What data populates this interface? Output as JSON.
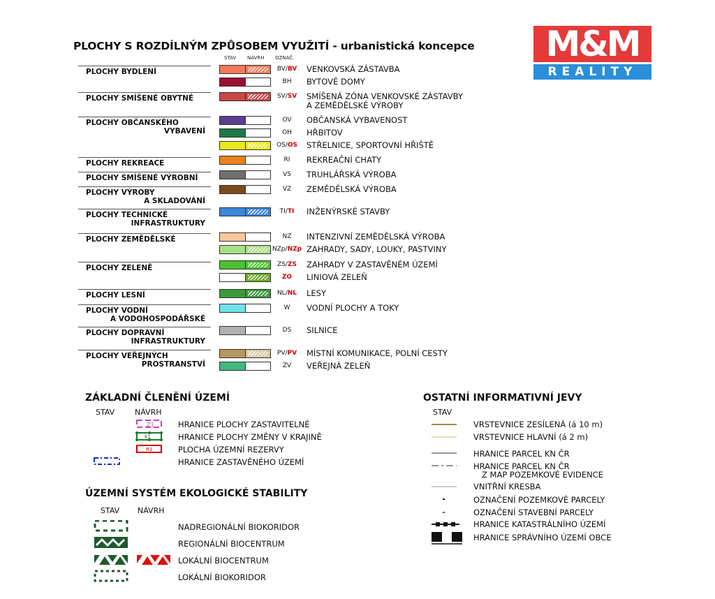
{
  "title": {
    "main": "PLOCHY S ROZDÍLNÝM ZPŮSOBEM VYUŽITÍ",
    "sub": " - urbanistická koncepce"
  },
  "columns": {
    "stav": "STAV",
    "navrh": "NÁVRH",
    "oznac": "OZNAČ."
  },
  "logo": {
    "top": "M&M",
    "bottom": "REALITY",
    "red": "#e53a3a",
    "blue": "#2a8fd8"
  },
  "groups": [
    {
      "lines": [
        "PLOCHY BYDLENÍ"
      ],
      "items": [
        {
          "stav": "#f47a5a",
          "navrh": "#f47a5a",
          "code": "BV",
          "code_red": "BV",
          "desc": [
            "VENKOVSKÁ ZÁSTAVBA"
          ]
        },
        {
          "stav": "#9b1030",
          "navrh": null,
          "code": "BH",
          "code_red": null,
          "desc": [
            "BYTOVÉ DOMY"
          ]
        }
      ]
    },
    {
      "lines": [
        "PLOCHY SMÍŠENÉ OBYTNÉ"
      ],
      "items": [
        {
          "stav": "#c84848",
          "navrh": "#c84848",
          "code": "SV",
          "code_red": "SV",
          "desc": [
            "SMÍŠENÁ ZÓNA VENKOVSKÉ ZÁSTAVBY",
            "A ZEMĚDĚLSKÉ VÝROBY"
          ]
        }
      ]
    },
    {
      "lines": [
        "PLOCHY OBČANSKÉHO",
        "VYBAVENÍ"
      ],
      "items": [
        {
          "stav": "#5b3f8f",
          "navrh": null,
          "code": "OV",
          "code_red": null,
          "desc": [
            "OBČANSKÁ VYBAVENOST"
          ]
        },
        {
          "stav": "#1e7a4a",
          "navrh": null,
          "code": "OH",
          "code_red": null,
          "desc": [
            "HŘBITOV"
          ]
        },
        {
          "stav": "#e8e820",
          "navrh": "#e8e820",
          "code": "OS",
          "code_red": "OS",
          "desc": [
            "STŘELNICE, SPORTOVNÍ HŘIŠTĚ"
          ]
        }
      ]
    },
    {
      "lines": [
        "PLOCHY REKREACE"
      ],
      "items": [
        {
          "stav": "#e8801e",
          "navrh": null,
          "code": "RI",
          "code_red": null,
          "desc": [
            "REKREAČNÍ CHATY"
          ]
        }
      ]
    },
    {
      "lines": [
        "PLOCHY SMÍŠENÉ VÝROBNÍ"
      ],
      "items": [
        {
          "stav": "#6e6e6e",
          "navrh": null,
          "code": "VS",
          "code_red": null,
          "desc": [
            "TRUHLÁŘSKÁ VÝROBA"
          ]
        }
      ]
    },
    {
      "lines": [
        "PLOCHY VÝROBY",
        "A SKLADOVÁNÍ"
      ],
      "items": [
        {
          "stav": "#7a4a1a",
          "navrh": null,
          "code": "VZ",
          "code_red": null,
          "desc": [
            "ZEMĚDĚLSKÁ VÝROBA"
          ]
        }
      ]
    },
    {
      "lines": [
        "PLOCHY TECHNICKÉ",
        "INFRASTRUKTURY"
      ],
      "items": [
        {
          "stav": "#3a86d8",
          "navrh": "#3a86d8",
          "code": "TI",
          "code_red": "TI",
          "desc": [
            "INŽENÝRSKÉ STAVBY"
          ]
        }
      ]
    },
    {
      "lines": [
        "PLOCHY ZEMĚDĚLSKÉ"
      ],
      "items": [
        {
          "stav": "#fcc89a",
          "navrh": null,
          "code": "NZ",
          "code_red": null,
          "desc": [
            "INTENZIVNÍ ZEMĚDĚLSKÁ VÝROBA"
          ]
        },
        {
          "stav": "#a8e088",
          "navrh": "#a8e088",
          "code": "NZp",
          "code_red": "NZp",
          "desc": [
            "ZAHRADY, SADY, LOUKY, PASTVINY"
          ]
        }
      ]
    },
    {
      "lines": [
        "PLOCHY ZELENĚ"
      ],
      "items": [
        {
          "stav": "#4cc030",
          "navrh": "#4cc030",
          "code": "ZS",
          "code_red": "ZS",
          "desc": [
            "ZAHRADY V ZASTAVĚNÉM ÚZEMÍ"
          ]
        },
        {
          "stav": null,
          "navrh": "#6aa828",
          "code": null,
          "code_red": "ZO",
          "desc": [
            "LINIOVÁ ZELEŇ"
          ]
        }
      ]
    },
    {
      "lines": [
        "PLOCHY LESNÍ"
      ],
      "items": [
        {
          "stav": "#3a9a3a",
          "navrh": "#3a9a3a",
          "code": "NL",
          "code_red": "NL",
          "desc": [
            "LESY"
          ]
        }
      ]
    },
    {
      "lines": [
        "PLOCHY VODNÍ",
        "A VODOHOSPODÁŘSKÉ"
      ],
      "items": [
        {
          "stav": "#70e0e8",
          "navrh": null,
          "code": "W",
          "code_red": null,
          "desc": [
            "VODNÍ PLOCHY A TOKY"
          ]
        }
      ]
    },
    {
      "lines": [
        "PLOCHY DOPRAVNÍ",
        "INFRASTRUKTURY"
      ],
      "items": [
        {
          "stav": "#b0b0b0",
          "navrh": null,
          "code": "DS",
          "code_red": null,
          "desc": [
            "SILNICE"
          ]
        }
      ]
    },
    {
      "lines": [
        "PLOCHY VEŘEJNÝCH",
        "PROSTRANSTVÍ"
      ],
      "items": [
        {
          "stav": "#b89860",
          "navrh": "#d8c8a0",
          "code": "PV",
          "code_red": "PV",
          "desc": [
            "MÍSTNÍ KOMUNIKACE, POLNÍ CESTY"
          ]
        },
        {
          "stav": "#40b880",
          "navrh": null,
          "code": "ZV",
          "code_red": null,
          "desc": [
            "VEŘEJNÁ ZELEŇ"
          ]
        }
      ]
    }
  ],
  "zakladni": {
    "title": "ZÁKLADNÍ ČLENĚNÍ ÚZEMÍ",
    "stav": "STAV",
    "navrh": "NÁVRH",
    "items": [
      {
        "label": "HRANICE PLOCHY ZASTAVITELNÉ",
        "tag": "Z1"
      },
      {
        "label": "HRANICE PLOCHY ZMĚNY V KRAJINĚ",
        "tag": "K1"
      },
      {
        "label": "PLOCHA ÚZEMNÍ REZERVY",
        "tag": "R1"
      },
      {
        "label": "HRANICE ZASTAVĚNÉHO ÚZEMÍ",
        "tag": ""
      }
    ]
  },
  "uses": {
    "title": "ÚZEMNÍ SYSTÉM EKOLOGICKÉ STABILITY",
    "stav": "STAV",
    "navrh": "NÁVRH",
    "items": [
      "NADREGIONÁLNÍ BIOKORIDOR",
      "REGIONÁLNÍ BIOCENTRUM",
      "LOKÁLNÍ BIOCENTRUM",
      "LOKÁLNÍ BIOKORIDOR"
    ]
  },
  "ostatni": {
    "title": "OSTATNÍ INFORMATIVNÍ JEVY",
    "stav": "STAV",
    "items": [
      "VRSTEVNICE ZESÍLENÁ (á 10 m)",
      "VRSTEVNICE HLAVNÍ (á 2 m)",
      "HRANICE PARCEL KN ČR",
      "HRANICE PARCEL KN ČR",
      "Z MAP POZEMKOVÉ EVIDENCE",
      "VNITŘNÍ KRESBA",
      "OZNAČENÍ POZEMKOVÉ PARCELY",
      "OZNAČENÍ STAVEBNÍ PARCELY",
      "HRANICE KATASTRÁLNÍHO ÚZEMÍ",
      "HRANICE SPRÁVNÍHO ÚZEMÍ OBCE"
    ]
  }
}
